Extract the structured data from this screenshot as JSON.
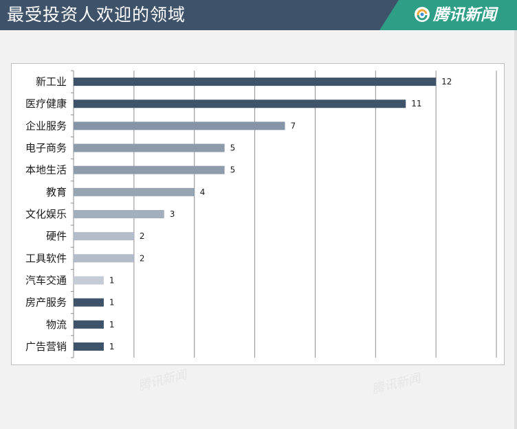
{
  "header": {
    "title": "最受投资人欢迎的领域",
    "brand": "腾讯新闻",
    "logo_icon": "tencent-news-logo-icon",
    "colors": {
      "bar": "#3e526a",
      "brand": "#2e9f86"
    }
  },
  "watermark": "腾讯新闻",
  "chart_data": {
    "type": "bar",
    "orientation": "horizontal",
    "categories": [
      "新工业",
      "医疗健康",
      "企业服务",
      "电子商务",
      "本地生活",
      "教育",
      "文化娱乐",
      "硬件",
      "工具软件",
      "汽车交通",
      "房产服务",
      "物流",
      "广告营销"
    ],
    "values": [
      12,
      11,
      7,
      5,
      5,
      4,
      3,
      2,
      2,
      1,
      1,
      1,
      1
    ],
    "colors": [
      "#3e526a",
      "#3e526a",
      "#8594a6",
      "#8d9bab",
      "#8d9bab",
      "#97a4b3",
      "#a4afbd",
      "#b3bcc8",
      "#b3bcc8",
      "#c5ccd5",
      "#3e526a",
      "#3e526a",
      "#3e526a"
    ],
    "xlim": [
      0,
      14
    ],
    "grid": true,
    "title": "",
    "xlabel": "",
    "ylabel": ""
  }
}
